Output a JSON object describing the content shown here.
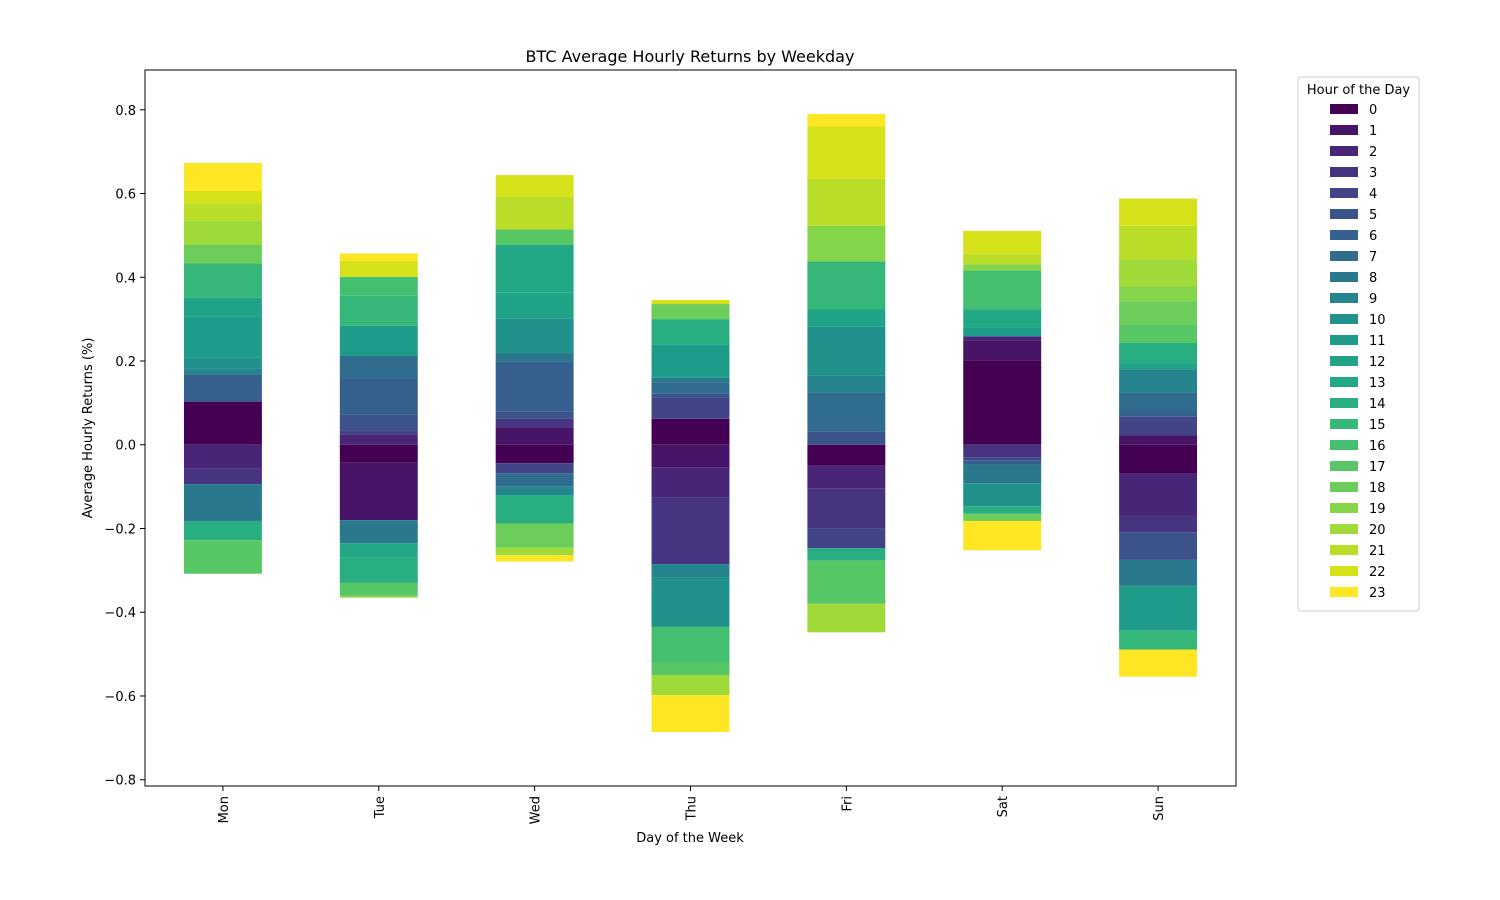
{
  "chart_data": {
    "type": "bar",
    "stacked": true,
    "title": "BTC Average Hourly Returns by Weekday",
    "xlabel": "Day of the Week",
    "ylabel": "Average Hourly Returns (%)",
    "categories": [
      "Mon",
      "Tue",
      "Wed",
      "Thu",
      "Fri",
      "Sat",
      "Sun"
    ],
    "ylim": [
      -0.815,
      0.895
    ],
    "yticks": [
      -0.8,
      -0.6,
      -0.4,
      -0.2,
      0.0,
      0.2,
      0.4,
      0.6,
      0.8
    ],
    "ytick_labels": [
      "−0.8",
      "−0.6",
      "−0.4",
      "−0.2",
      "0.0",
      "0.2",
      "0.4",
      "0.6",
      "0.8"
    ],
    "grid": false,
    "legend_position": "outside-right",
    "legend_title": "Hour of the Day",
    "series": [
      {
        "name": "0",
        "color": "#440154",
        "values": [
          0.103,
          -0.043,
          -0.044,
          0.062,
          -0.05,
          0.202,
          -0.069
        ]
      },
      {
        "name": "1",
        "color": "#481467",
        "values": [
          0.0,
          -0.137,
          0.042,
          -0.055,
          0.0,
          0.046,
          0.022
        ]
      },
      {
        "name": "2",
        "color": "#482576",
        "values": [
          -0.057,
          0.025,
          0.0,
          -0.07,
          -0.055,
          0.011,
          -0.1
        ]
      },
      {
        "name": "3",
        "color": "#463480",
        "values": [
          -0.037,
          0.0,
          0.02,
          -0.16,
          -0.094,
          -0.03,
          -0.04
        ]
      },
      {
        "name": "4",
        "color": "#414487",
        "values": [
          0.0,
          0.01,
          -0.024,
          0.05,
          -0.048,
          -0.007,
          0.045
        ]
      },
      {
        "name": "5",
        "color": "#3b528b",
        "values": [
          0.0,
          0.037,
          0.018,
          0.01,
          0.032,
          0.0,
          -0.066
        ]
      },
      {
        "name": "6",
        "color": "#355f8d",
        "values": [
          0.065,
          0.085,
          0.119,
          0.0,
          0.0,
          -0.01,
          0.01
        ]
      },
      {
        "name": "7",
        "color": "#2f6c8e",
        "values": [
          0.0,
          0.055,
          -0.031,
          0.027,
          0.093,
          0.0,
          0.048
        ]
      },
      {
        "name": "8",
        "color": "#2a788e",
        "values": [
          -0.088,
          -0.055,
          0.02,
          0.011,
          0.0,
          -0.045,
          -0.062
        ]
      },
      {
        "name": "9",
        "color": "#25848e",
        "values": [
          0.015,
          0.0,
          -0.021,
          -0.031,
          0.04,
          0.0,
          0.055
        ]
      },
      {
        "name": "10",
        "color": "#21918c",
        "values": [
          0.025,
          0.0,
          0.083,
          -0.119,
          0.117,
          -0.055,
          0.0
        ]
      },
      {
        "name": "11",
        "color": "#1e9c89",
        "values": [
          0.098,
          0.072,
          0.0,
          0.08,
          0.0,
          0.02,
          -0.107
        ]
      },
      {
        "name": "12",
        "color": "#20a386",
        "values": [
          0.045,
          0.0,
          0.061,
          0.0,
          0.041,
          0.0,
          0.015
        ]
      },
      {
        "name": "13",
        "color": "#22a884",
        "values": [
          0.0,
          -0.035,
          0.114,
          0.0,
          0.0,
          0.045,
          0.0
        ]
      },
      {
        "name": "14",
        "color": "#28ae80",
        "values": [
          -0.046,
          -0.06,
          -0.068,
          0.06,
          -0.03,
          -0.018,
          0.048
        ]
      },
      {
        "name": "15",
        "color": "#35b779",
        "values": [
          0.082,
          0.072,
          0.0,
          0.0,
          0.115,
          0.0,
          -0.045
        ]
      },
      {
        "name": "16",
        "color": "#44bf70",
        "values": [
          0.0,
          0.045,
          0.0,
          -0.085,
          0.0,
          0.092,
          0.0
        ]
      },
      {
        "name": "17",
        "color": "#57c765",
        "values": [
          -0.08,
          -0.03,
          0.037,
          -0.03,
          -0.103,
          0.0,
          0.045
        ]
      },
      {
        "name": "18",
        "color": "#6ccd5a",
        "values": [
          0.045,
          0.0,
          -0.058,
          0.036,
          0.0,
          -0.017,
          0.055
        ]
      },
      {
        "name": "19",
        "color": "#85d54a",
        "values": [
          0.0,
          -0.005,
          0.0,
          0.0,
          0.085,
          0.015,
          0.035
        ]
      },
      {
        "name": "20",
        "color": "#a0da39",
        "values": [
          0.058,
          0.0,
          -0.018,
          -0.048,
          -0.068,
          0.0,
          0.065
        ]
      },
      {
        "name": "21",
        "color": "#bade28",
        "values": [
          0.04,
          0.0,
          0.078,
          0.0,
          0.112,
          0.025,
          0.08
        ]
      },
      {
        "name": "22",
        "color": "#d5e21a",
        "values": [
          0.03,
          0.038,
          0.052,
          0.01,
          0.125,
          0.055,
          0.065
        ]
      },
      {
        "name": "23",
        "color": "#fde725",
        "values": [
          0.067,
          0.018,
          -0.015,
          -0.088,
          0.03,
          -0.07,
          -0.065
        ]
      }
    ]
  }
}
